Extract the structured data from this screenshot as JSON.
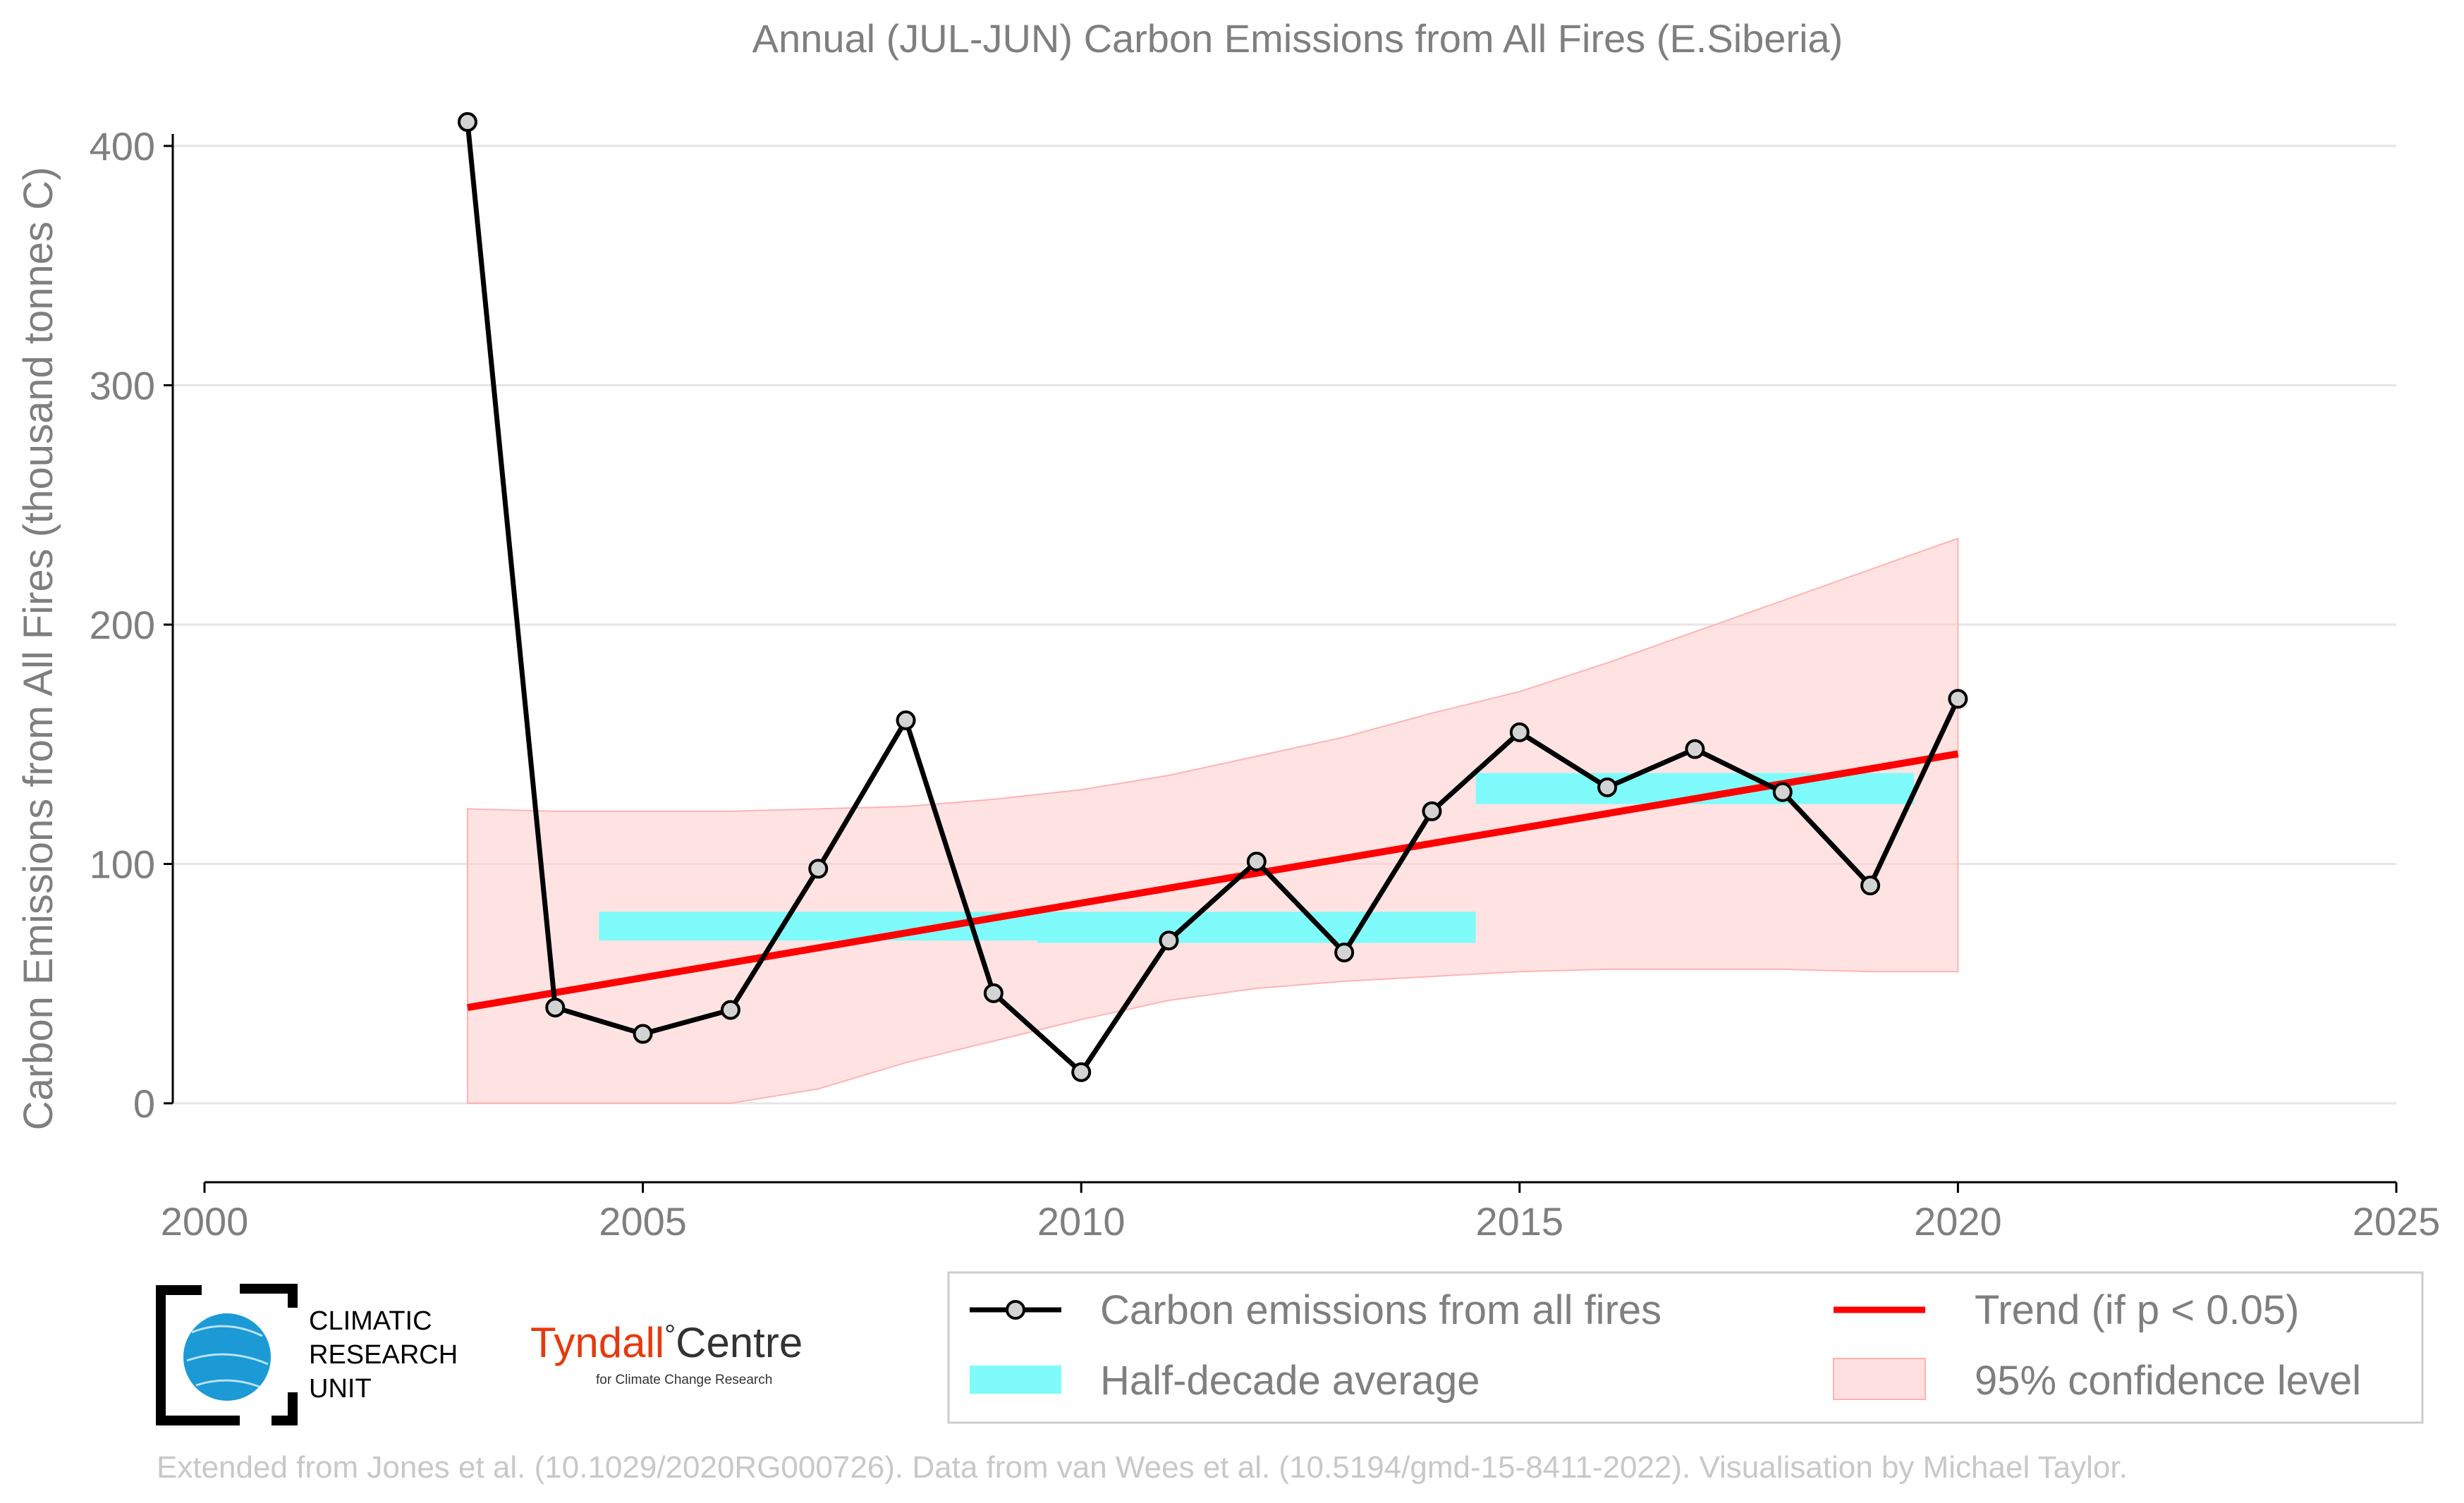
{
  "title": "Annual (JUL-JUN) Carbon Emissions from All Fires (E.Siberia)",
  "chart_data": {
    "type": "line",
    "title": "Annual (JUL-JUN) Carbon Emissions from All Fires (E.Siberia)",
    "xlabel": "",
    "ylabel": "Carbon Emissions from All Fires (thousand tonnes C)",
    "xlim": [
      2000,
      2025
    ],
    "ylim": [
      -20,
      420
    ],
    "xticks": [
      2000,
      2005,
      2010,
      2015,
      2020,
      2025
    ],
    "yticks": [
      0,
      100,
      200,
      300,
      400
    ],
    "grid": "horizontal",
    "legend_position": "bottom-right",
    "series": [
      {
        "name": "Carbon emissions from all fires",
        "color": "#000000",
        "marker_fill": "#d3d3d3",
        "x": [
          2003,
          2004,
          2005,
          2006,
          2007,
          2008,
          2009,
          2010,
          2011,
          2012,
          2013,
          2014,
          2015,
          2016,
          2017,
          2018,
          2019,
          2020
        ],
        "y": [
          410,
          40,
          29,
          39,
          98,
          160,
          46,
          13,
          68,
          101,
          63,
          122,
          155,
          132,
          148,
          130,
          91,
          169
        ]
      },
      {
        "name": "Half-decade average",
        "color": "#7ffbfb",
        "segments": [
          {
            "x0": 2004.5,
            "x1": 2009.5,
            "y0": 68,
            "y1": 80
          },
          {
            "x0": 2009.5,
            "x1": 2014.5,
            "y0": 67,
            "y1": 80
          },
          {
            "x0": 2014.5,
            "x1": 2019.5,
            "y0": 125,
            "y1": 138
          }
        ]
      },
      {
        "name": "Trend (if p < 0.05)",
        "color": "#ff0000",
        "x": [
          2003,
          2020
        ],
        "y": [
          40,
          146
        ]
      },
      {
        "name": "95% confidence level",
        "color": "#ffcccc",
        "x": [
          2003,
          2004,
          2005,
          2006,
          2007,
          2008,
          2009,
          2010,
          2011,
          2012,
          2013,
          2014,
          2015,
          2016,
          2017,
          2018,
          2019,
          2020
        ],
        "upper": [
          123,
          122,
          122,
          122,
          123,
          124,
          127,
          131,
          137,
          145,
          153,
          163,
          172,
          184,
          197,
          210,
          223,
          236
        ],
        "lower": [
          0,
          0,
          0,
          0,
          6,
          17,
          26,
          35,
          43,
          48,
          51,
          53,
          55,
          56,
          56,
          56,
          55,
          55
        ]
      }
    ]
  },
  "legend": {
    "items": [
      {
        "label": "Carbon emissions from all fires"
      },
      {
        "label": "Trend (if p < 0.05)"
      },
      {
        "label": "Half-decade average"
      },
      {
        "label": "95% confidence level"
      }
    ]
  },
  "logos": {
    "cru": {
      "line1": "CLIMATIC",
      "line2": "RESEARCH",
      "line3": "UNIT"
    },
    "tyndall": {
      "name": "Tyndall",
      "degree": "°",
      "centre": "Centre",
      "sub": "for Climate Change Research",
      "name_color": "#e8380d"
    }
  },
  "credit": "Extended from Jones et al. (10.1029/2020RG000726). Data from van Wees et al. (10.5194/gmd-15-8411-2022). Visualisation by Michael Taylor."
}
